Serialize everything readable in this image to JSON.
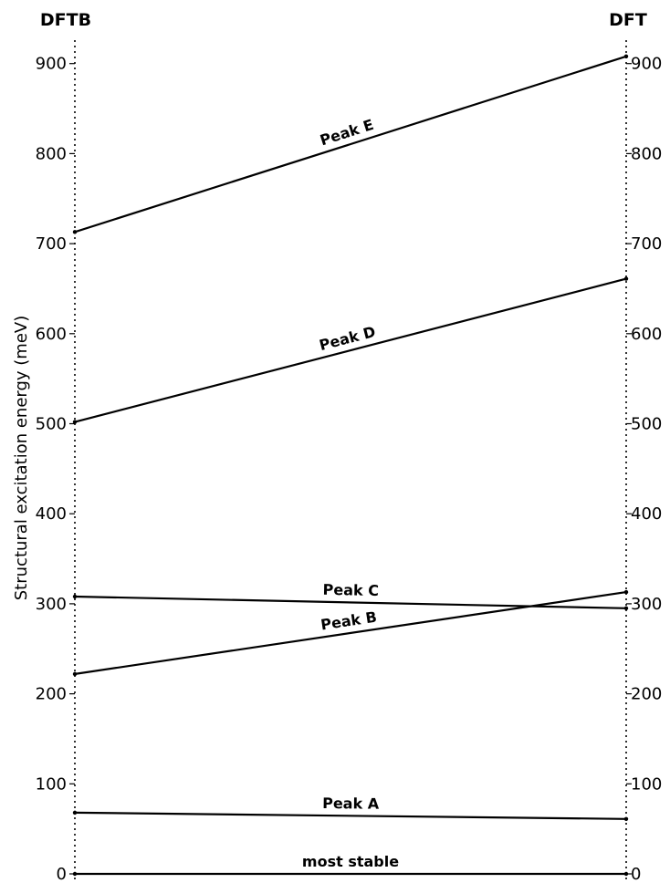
{
  "chart_data": {
    "type": "line",
    "left_label": "DFTB",
    "right_label": "DFT",
    "ylabel": "Structural excitation energy (meV)",
    "ylim": [
      0,
      900
    ],
    "yticks": [
      0,
      100,
      200,
      300,
      400,
      500,
      600,
      700,
      800,
      900
    ],
    "x": [
      "DFTB",
      "DFT"
    ],
    "series": [
      {
        "name": "most stable",
        "values": [
          0,
          0
        ]
      },
      {
        "name": "Peak A",
        "values": [
          68,
          61
        ]
      },
      {
        "name": "Peak B",
        "values": [
          222,
          313
        ]
      },
      {
        "name": "Peak C",
        "values": [
          308,
          295
        ]
      },
      {
        "name": "Peak D",
        "values": [
          502,
          661
        ]
      },
      {
        "name": "Peak E",
        "values": [
          713,
          908
        ]
      }
    ],
    "line_color": "#000000",
    "axis_style": "dotted"
  }
}
